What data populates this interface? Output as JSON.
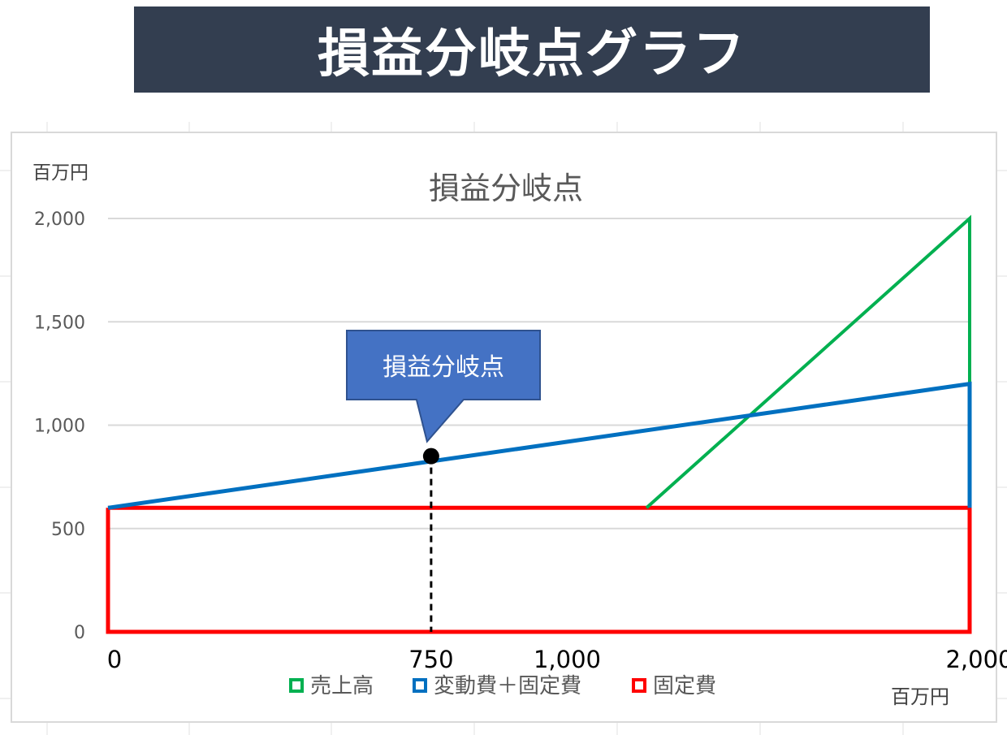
{
  "banner": {
    "title": "損益分岐点グラフ"
  },
  "chart_data": {
    "type": "line",
    "title": "損益分岐点",
    "yunit": "百万円",
    "xunit": "百万円",
    "ylim": [
      0,
      2000
    ],
    "xlim": [
      0,
      2000
    ],
    "yticks": [
      "2,000",
      "1,500",
      "1,000",
      "500",
      "0"
    ],
    "ytick_values": [
      2000,
      1500,
      1000,
      500,
      0
    ],
    "xticks": [
      {
        "value": 0,
        "label": "0"
      },
      {
        "value": 750,
        "label": "750"
      },
      {
        "value": 1000,
        "label": "1,000"
      },
      {
        "value": 2000,
        "label": "2,000"
      }
    ],
    "grid": true,
    "legend_position": "bottom",
    "series": [
      {
        "name": "売上高",
        "color": "#00b050",
        "x": [
          1250,
          2000,
          2000
        ],
        "y": [
          600,
          2000,
          1200
        ]
      },
      {
        "name": "変動費＋固定費",
        "color": "#0070c0",
        "x": [
          0,
          2000,
          2000
        ],
        "y": [
          600,
          1200,
          600
        ]
      },
      {
        "name": "固定費",
        "color": "#ff0000",
        "x": [
          0,
          2000,
          2000,
          0,
          0
        ],
        "y": [
          600,
          600,
          0,
          0,
          600
        ]
      }
    ],
    "break_even": {
      "x": 750,
      "y": 850,
      "label": "損益分岐点",
      "callout_color": "#4472c4"
    }
  }
}
